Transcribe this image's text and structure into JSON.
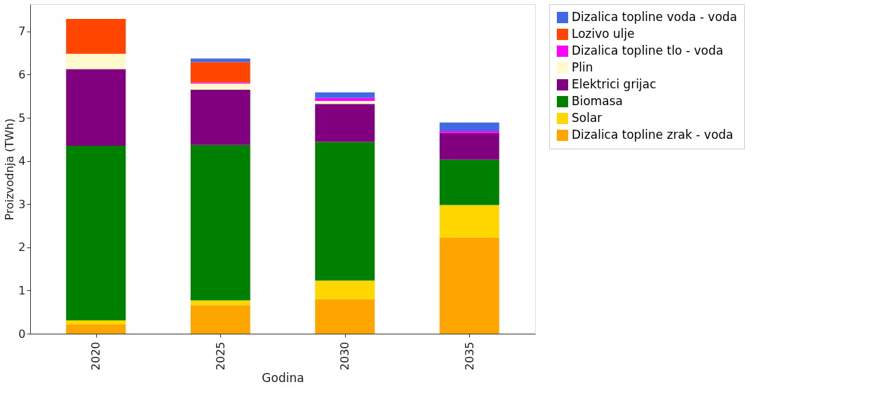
{
  "chart_data": {
    "type": "bar",
    "stacked": true,
    "xlabel": "Godina",
    "ylabel": "Proizvodnja (TWh)",
    "categories": [
      "2020",
      "2025",
      "2030",
      "2035"
    ],
    "series": [
      {
        "name": "Dizalica topline zrak - voda",
        "color": "#ffa500",
        "values": [
          0.21,
          0.66,
          0.8,
          2.23
        ]
      },
      {
        "name": "Solar",
        "color": "#ffd700",
        "values": [
          0.1,
          0.11,
          0.43,
          0.75
        ]
      },
      {
        "name": "Biomasa",
        "color": "#008000",
        "values": [
          4.04,
          3.6,
          3.21,
          1.05
        ]
      },
      {
        "name": "Elektrici grijac",
        "color": "#800080",
        "values": [
          1.78,
          1.28,
          0.88,
          0.62
        ]
      },
      {
        "name": "Plin",
        "color": "#fffacd",
        "values": [
          0.35,
          0.14,
          0.07,
          0
        ]
      },
      {
        "name": "Dizalica topline tlo - voda",
        "color": "#ff00ff",
        "values": [
          0,
          0.03,
          0.07,
          0.04
        ]
      },
      {
        "name": "Lozivo ulje",
        "color": "#ff4500",
        "values": [
          0.81,
          0.47,
          0,
          0
        ]
      },
      {
        "name": "Dizalica topline voda - voda",
        "color": "#4169e1",
        "values": [
          0,
          0.08,
          0.13,
          0.2
        ]
      }
    ],
    "ylim": [
      0,
      7.63
    ],
    "yticks": [
      0,
      1,
      2,
      3,
      4,
      5,
      6,
      7
    ],
    "grid": false,
    "legend": "right"
  }
}
